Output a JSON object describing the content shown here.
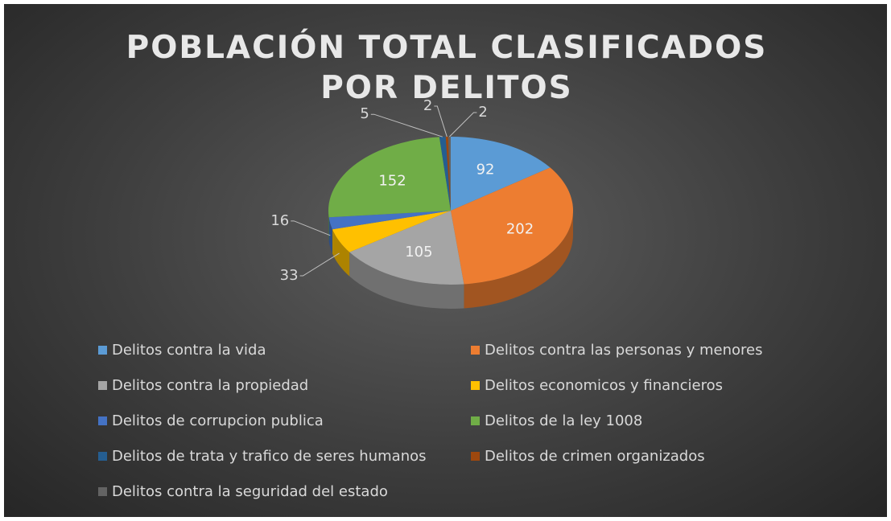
{
  "chart_data": {
    "type": "pie3d",
    "title": "POBLACIÓN TOTAL CLASIFICADOS POR DELITOS",
    "categories": [
      "Delitos contra la vida",
      "Delitos contra las personas y menores",
      "Delitos contra la propiedad",
      "Delitos economicos y financieros",
      "Delitos de corrupcion publica",
      "Delitos de la ley 1008",
      "Delitos de trata y trafico de seres humanos",
      "Delitos de crimen organizados",
      "Delitos contra la seguridad del estado"
    ],
    "values": [
      92,
      202,
      105,
      33,
      16,
      152,
      5,
      2,
      2
    ],
    "colors": [
      "#5b9bd5",
      "#ed7d31",
      "#a5a5a5",
      "#ffc000",
      "#4472c4",
      "#70ad47",
      "#255e91",
      "#9e480e",
      "#636363"
    ],
    "legend": "bottom"
  }
}
